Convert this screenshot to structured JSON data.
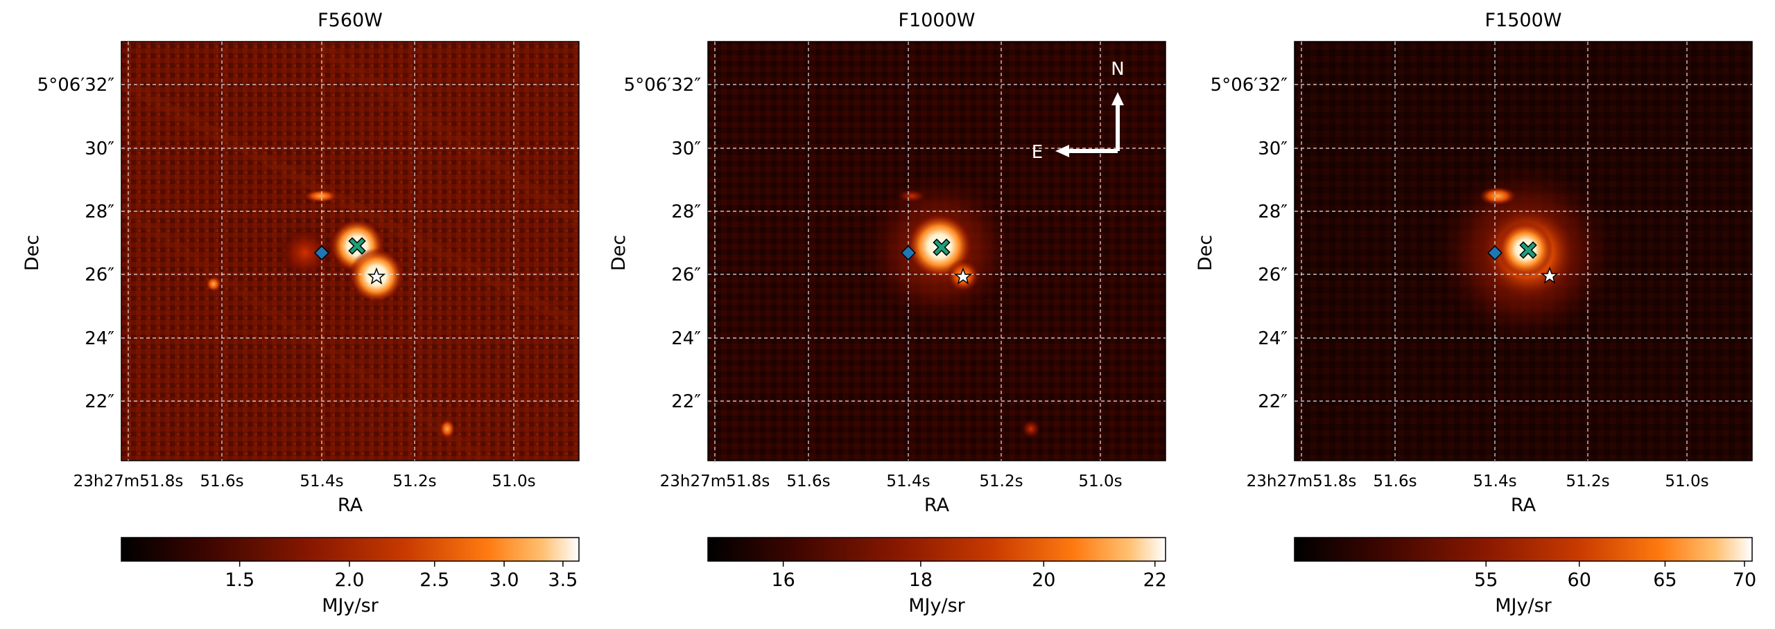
{
  "figure": {
    "panels": [
      {
        "title": "F560W",
        "ylabel": "Dec",
        "xlabel": "RA",
        "ra_ticks": [
          "23h27m51.8s",
          "51.6s",
          "51.4s",
          "51.2s",
          "51.0s"
        ],
        "dec_ticks": [
          "5°06′32″",
          "30″",
          "28″",
          "26″",
          "24″",
          "22″"
        ],
        "colorbar_ticks": [
          "1.5",
          "2.0",
          "2.5",
          "3.0",
          "3.5"
        ],
        "colorbar_values": [
          1.5,
          2.0,
          2.5,
          3.0,
          3.5
        ],
        "colorbar_range": [
          1.1,
          3.65
        ],
        "colorbar_label": "MJy/sr",
        "compass": null
      },
      {
        "title": "F1000W",
        "ylabel": "Dec",
        "xlabel": "RA",
        "ra_ticks": [
          "23h27m51.8s",
          "51.6s",
          "51.4s",
          "51.2s",
          "51.0s"
        ],
        "dec_ticks": [
          "5°06′32″",
          "30″",
          "28″",
          "26″",
          "24″",
          "22″"
        ],
        "colorbar_ticks": [
          "16",
          "18",
          "20",
          "22"
        ],
        "colorbar_values": [
          16,
          18,
          20,
          22
        ],
        "colorbar_range": [
          15.0,
          22.2
        ],
        "colorbar_label": "MJy/sr",
        "compass": {
          "north": "N",
          "east": "E"
        }
      },
      {
        "title": "F1500W",
        "ylabel": "Dec",
        "xlabel": "RA",
        "ra_ticks": [
          "23h27m51.8s",
          "51.6s",
          "51.4s",
          "51.2s",
          "51.0s"
        ],
        "dec_ticks": [
          "5°06′32″",
          "30″",
          "28″",
          "26″",
          "24″",
          "22″"
        ],
        "colorbar_ticks": [
          "55",
          "60",
          "65",
          "70"
        ],
        "colorbar_values": [
          55,
          60,
          65,
          70
        ],
        "colorbar_range": [
          46.0,
          70.5
        ],
        "colorbar_label": "MJy/sr",
        "compass": null
      }
    ],
    "colors": {
      "cmap": [
        "#000000",
        "#3a0500",
        "#8a1800",
        "#c83a00",
        "#ff7a10",
        "#ffc070",
        "#ffffff"
      ],
      "diamond_marker": "#1f78b4",
      "x_marker": "#1f9e7a",
      "star_marker": "#ffffff",
      "grid": "#e6e6e6"
    }
  }
}
